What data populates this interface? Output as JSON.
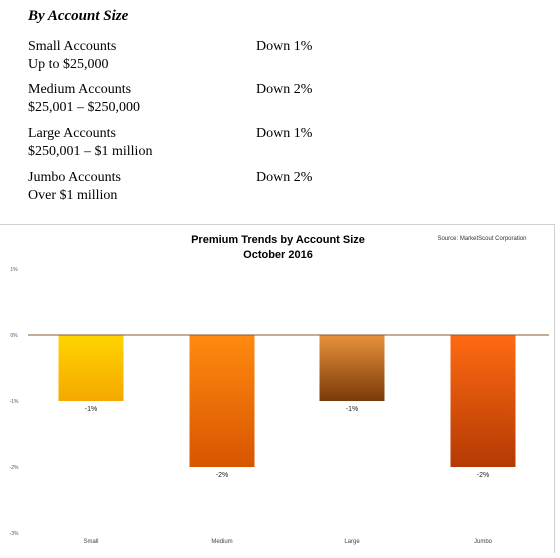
{
  "summary": {
    "heading": "By Account Size",
    "rows": [
      {
        "name": "Small Accounts",
        "range": "Up to $25,000",
        "change": "Down 1%"
      },
      {
        "name": "Medium Accounts",
        "range": "$25,001 – $250,000",
        "change": "Down 2%"
      },
      {
        "name": "Large Accounts",
        "range": "$250,001 – $1 million",
        "change": "Down 1%"
      },
      {
        "name": "Jumbo Accounts",
        "range": "Over $1 million",
        "change": "Down 2%"
      }
    ]
  },
  "chart_data": {
    "type": "bar",
    "title": "Premium Trends by Account Size",
    "subtitle": "October 2016",
    "source": "Source: MarketScout Corporation",
    "categories": [
      "Small",
      "Medium",
      "Large",
      "Jumbo"
    ],
    "values": [
      -1,
      -2,
      -1,
      -2
    ],
    "data_labels": [
      "-1%",
      "-2%",
      "-1%",
      "-2%"
    ],
    "y_ticks": [
      1,
      0,
      -1,
      -2,
      -3
    ],
    "y_tick_labels": [
      "1%",
      "0%",
      "-1%",
      "-2%",
      "-3%"
    ],
    "ylim": [
      -3,
      1
    ],
    "grid": false,
    "colors": {
      "small": [
        "#ffd400",
        "#f5a800"
      ],
      "medium": [
        "#ff8a10",
        "#d85500"
      ],
      "large": [
        "#e8923a",
        "#7a3a08"
      ],
      "jumbo": [
        "#ff6a12",
        "#b43a04"
      ],
      "zero_line": "#8a5a2e"
    }
  }
}
